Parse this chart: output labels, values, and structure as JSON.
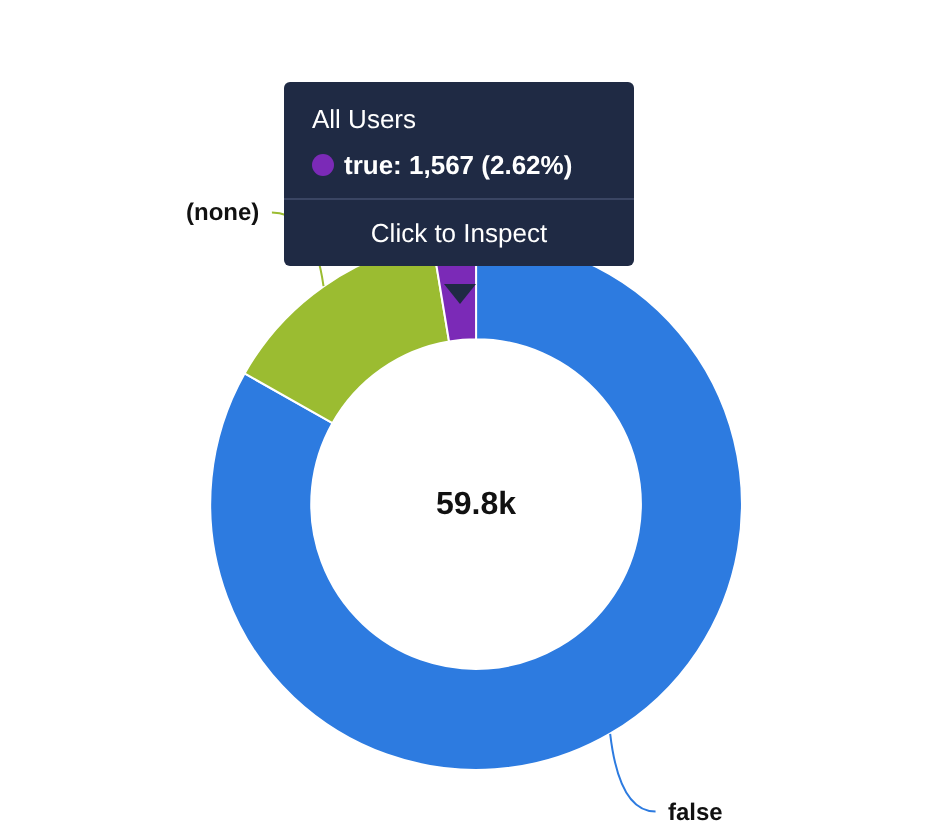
{
  "chart_data": {
    "type": "donut",
    "categories": [
      "false",
      "(none)",
      "true"
    ],
    "values": [
      83.18,
      14.2,
      2.62
    ],
    "colors": [
      "#2d7be0",
      "#9bbc31",
      "#7b2ab7"
    ],
    "annotations": [
      "All Users",
      ": 1,567 (2.62%)",
      "Click to Inspect",
      "59.8k"
    ],
    "legend": false
  }
}
